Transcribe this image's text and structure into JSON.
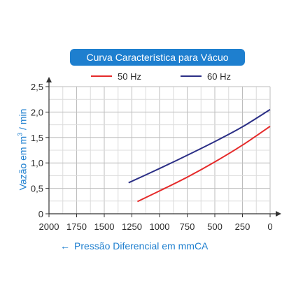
{
  "chart_data": {
    "type": "line",
    "title": "Curva Característica para Vácuo",
    "xlabel": "Pressão Diferencial em mmCA",
    "ylabel": "Vazão em m³ / min",
    "ylabel_parts": {
      "before": "Vazão em m",
      "sup": "3",
      "after": " / min"
    },
    "x_ticks": [
      "2000",
      "1750",
      "1500",
      "1250",
      "1000",
      "750",
      "500",
      "250",
      "0"
    ],
    "y_ticks": [
      "0",
      "0,5",
      "1,0",
      "1,5",
      "2,0",
      "2,5"
    ],
    "xlim": [
      2000,
      0
    ],
    "ylim": [
      0,
      2.5
    ],
    "x_reversed": true,
    "grid": true,
    "legend_position": "top",
    "series": [
      {
        "name": "50 Hz",
        "color": "#e52a2a",
        "points": [
          [
            1200,
            0.24
          ],
          [
            1000,
            0.45
          ],
          [
            750,
            0.72
          ],
          [
            500,
            1.02
          ],
          [
            250,
            1.35
          ],
          [
            0,
            1.72
          ]
        ]
      },
      {
        "name": "60 Hz",
        "color": "#2b2f86",
        "points": [
          [
            1280,
            0.61
          ],
          [
            1000,
            0.89
          ],
          [
            750,
            1.15
          ],
          [
            500,
            1.42
          ],
          [
            250,
            1.71
          ],
          [
            0,
            2.05
          ]
        ]
      }
    ]
  },
  "colors": {
    "accent": "#1e7fcf",
    "grid": "#bdbdbd",
    "axis": "#333333"
  },
  "icons": {
    "xlabel_arrow": "left-arrow-icon"
  }
}
